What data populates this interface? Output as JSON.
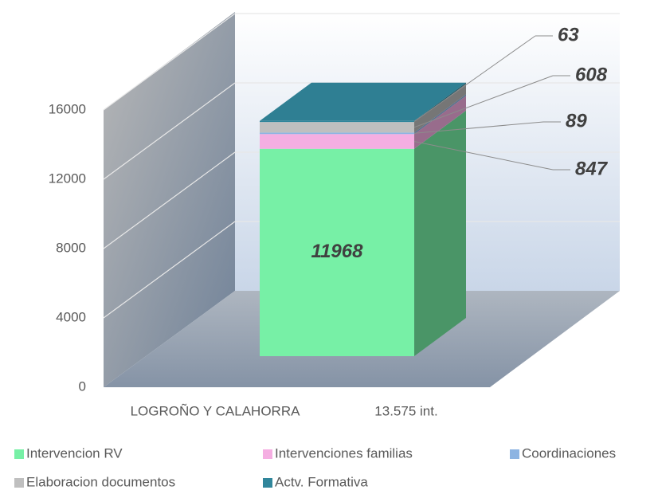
{
  "chart_data": {
    "type": "bar3d",
    "categories": [
      "LOGROÑO Y CALAHORRA"
    ],
    "annotation": "13.575 int.",
    "series": [
      {
        "name": "Intervencion RV",
        "color": "#77f0a6",
        "values": [
          11968
        ]
      },
      {
        "name": "Intervenciones familias",
        "color": "#f5aee2",
        "values": [
          847
        ]
      },
      {
        "name": "Coordinaciones",
        "color": "#8db4e2",
        "values": [
          89
        ]
      },
      {
        "name": "Elaboracion documentos",
        "color": "#bfbfbf",
        "values": [
          608
        ]
      },
      {
        "name": "Actv. Formativa",
        "color": "#31869b",
        "values": [
          63
        ]
      }
    ],
    "ylim": [
      0,
      16000
    ],
    "yticks": [
      0,
      4000,
      8000,
      12000,
      16000
    ],
    "grid": true
  }
}
